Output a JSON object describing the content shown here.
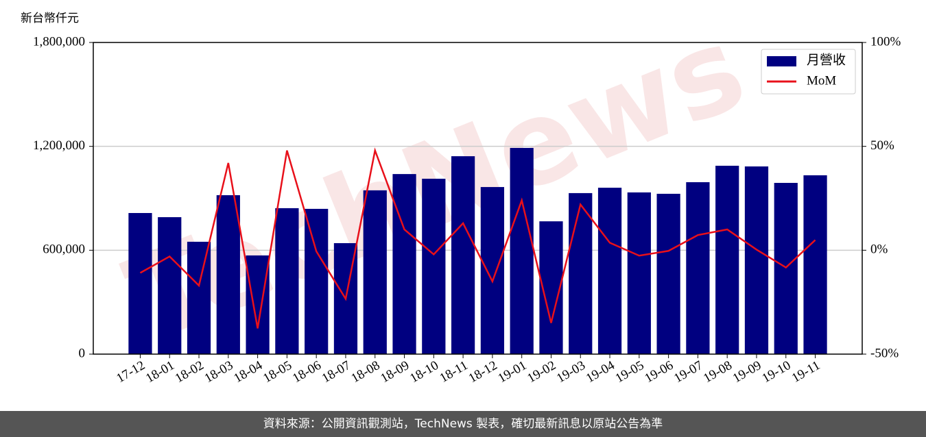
{
  "chart_data": {
    "type": "bar_line",
    "y_label": "新台幣仟元",
    "watermark": "TechNews",
    "source": "資料來源：公開資訊觀測站，TechNews 製表，確切最新訊息以原站公告為準",
    "categories": [
      "17-12",
      "18-01",
      "18-02",
      "18-03",
      "18-04",
      "18-05",
      "18-06",
      "18-07",
      "18-08",
      "18-09",
      "18-10",
      "18-11",
      "18-12",
      "19-01",
      "19-02",
      "19-03",
      "19-04",
      "19-05",
      "19-06",
      "19-07",
      "19-08",
      "19-09",
      "19-10",
      "19-11"
    ],
    "series": [
      {
        "name": "月營收",
        "type": "bar",
        "color": "#000080",
        "values": [
          815000,
          791000,
          649000,
          918000,
          570000,
          843000,
          839000,
          641000,
          946000,
          1040000,
          1013000,
          1143000,
          965000,
          1191000,
          767000,
          930000,
          961000,
          934000,
          926000,
          993000,
          1088000,
          1084000,
          989000,
          1033000
        ]
      },
      {
        "name": "MoM",
        "type": "line",
        "axis": "y2",
        "color": "#e8101a",
        "values": [
          -10.9,
          -3,
          -17,
          42,
          -37.6,
          48,
          -0.5,
          -23.4,
          48,
          10,
          -2,
          13,
          -15,
          24,
          -35,
          22,
          3.6,
          -2.6,
          -0.3,
          7.3,
          10,
          0.3,
          -8.3,
          4.9
        ]
      }
    ],
    "ylim": [
      0,
      1800000
    ],
    "yticks": [
      0,
      {
        "value": 600000,
        "label": "600,000"
      },
      {
        "value": 1200000,
        "label": "1,200,000"
      },
      {
        "value": 1800000,
        "label": "1,800,000"
      }
    ],
    "y2lim": [
      -50,
      100
    ],
    "y2ticks": [
      {
        "value": -50,
        "label": "-50%"
      },
      {
        "value": 0,
        "label": "0%"
      },
      {
        "value": 50,
        "label": "50%"
      },
      {
        "value": 100,
        "label": "100%"
      }
    ],
    "grid": true,
    "legend": "upper right"
  }
}
